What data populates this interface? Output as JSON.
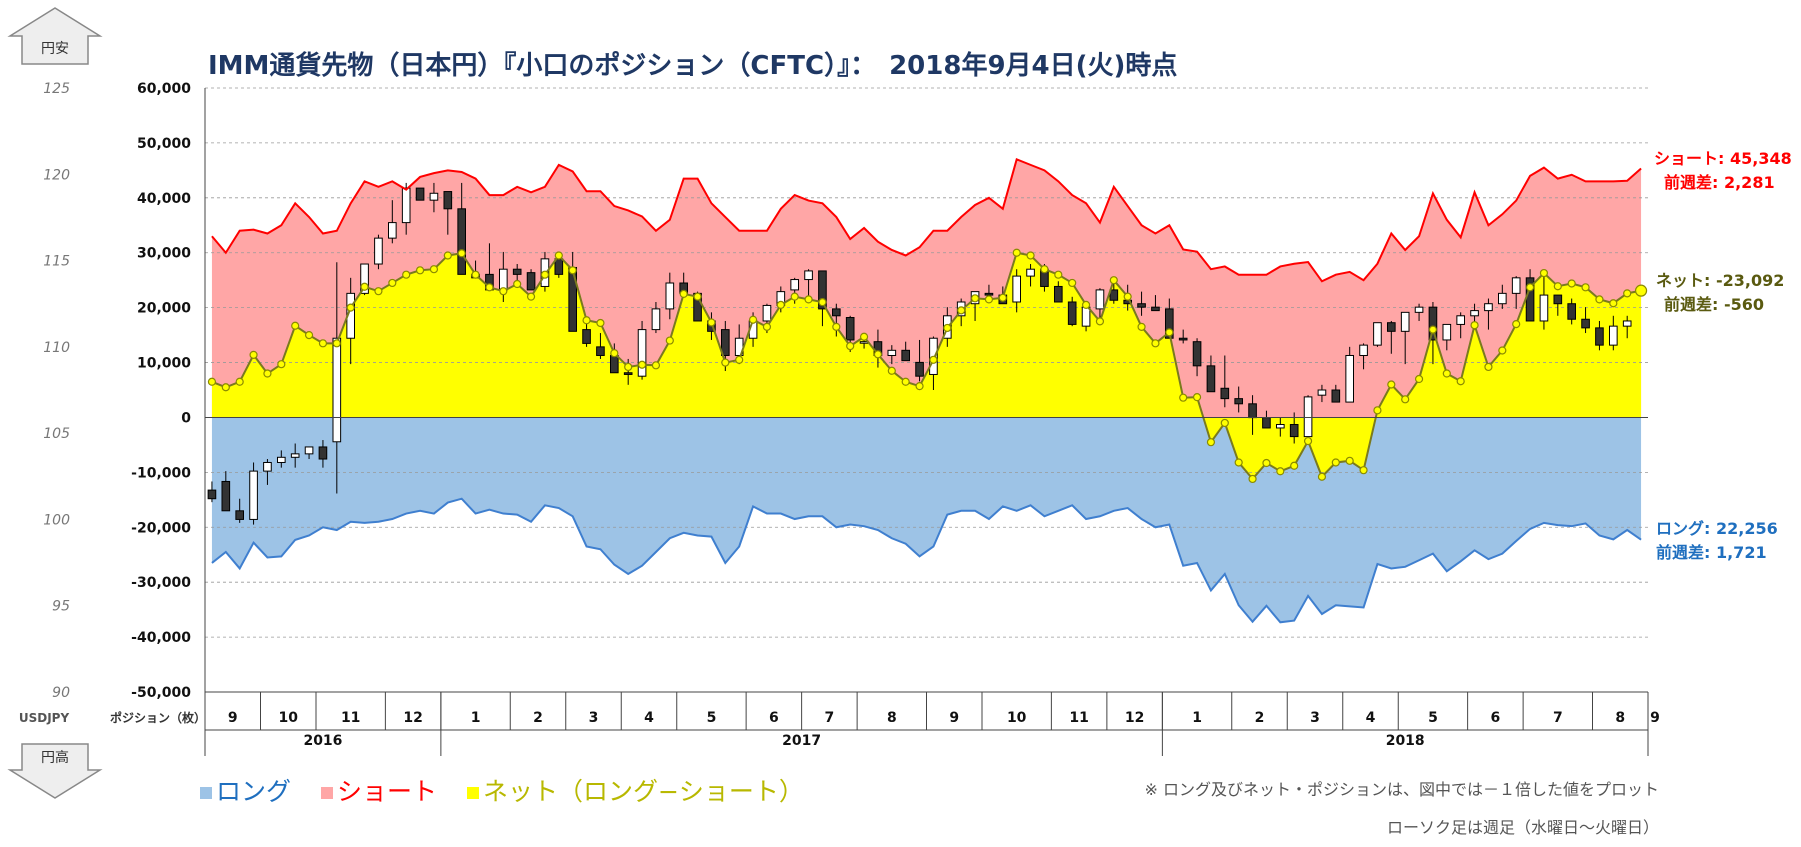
{
  "chart_data": {
    "type": "area",
    "title": "IMM通貨先物（日本円）『小口のポジション（CFTC）』：　2018年9月4日(火)時点",
    "left_axis": {
      "label": "ポジション（枚）",
      "ticks": [
        "60,000",
        "50,000",
        "40,000",
        "30,000",
        "20,000",
        "10,000",
        "0",
        "-10,000",
        "-20,000",
        "-30,000",
        "-40,000",
        "-50,000"
      ],
      "ylim": [
        -50000,
        60000
      ]
    },
    "right_price_axis": {
      "label": "USDJPY",
      "ticks": [
        "125",
        "120",
        "115",
        "110",
        "105",
        "100",
        "95",
        "90"
      ],
      "ylim": [
        90,
        125
      ]
    },
    "top_arrow": "円安",
    "bottom_arrow": "円高",
    "months": [
      {
        "label": "9",
        "weeks": 4
      },
      {
        "label": "10",
        "weeks": 4
      },
      {
        "label": "11",
        "weeks": 5
      },
      {
        "label": "12",
        "weeks": 4
      },
      {
        "label": "1",
        "weeks": 5
      },
      {
        "label": "2",
        "weeks": 4
      },
      {
        "label": "3",
        "weeks": 4
      },
      {
        "label": "4",
        "weeks": 4
      },
      {
        "label": "5",
        "weeks": 5
      },
      {
        "label": "6",
        "weeks": 4
      },
      {
        "label": "7",
        "weeks": 4
      },
      {
        "label": "8",
        "weeks": 5
      },
      {
        "label": "9",
        "weeks": 4
      },
      {
        "label": "10",
        "weeks": 5
      },
      {
        "label": "11",
        "weeks": 4
      },
      {
        "label": "12",
        "weeks": 4
      },
      {
        "label": "1",
        "weeks": 5
      },
      {
        "label": "2",
        "weeks": 4
      },
      {
        "label": "3",
        "weeks": 4
      },
      {
        "label": "4",
        "weeks": 4
      },
      {
        "label": "5",
        "weeks": 5
      },
      {
        "label": "6",
        "weeks": 4
      },
      {
        "label": "7",
        "weeks": 5
      },
      {
        "label": "8",
        "weeks": 4
      },
      {
        "label": "9",
        "weeks": 1
      }
    ],
    "years": [
      {
        "label": "2016",
        "months": 4
      },
      {
        "label": "2017",
        "months": 12
      },
      {
        "label": "2018",
        "months": 9
      }
    ],
    "series": [
      {
        "name": "ショート",
        "color": "#ff0000",
        "fill": "#ffa6a6",
        "values": [
          33000,
          30000,
          34000,
          34200,
          33500,
          35000,
          39000,
          36500,
          33500,
          34000,
          39000,
          43000,
          42000,
          43000,
          41500,
          43800,
          44500,
          45000,
          44700,
          43500,
          40500,
          40500,
          42000,
          41000,
          42000,
          46000,
          44800,
          41200,
          41200,
          38500,
          37700,
          36600,
          34000,
          36000,
          43500,
          43500,
          39000,
          36500,
          34000,
          34000,
          34000,
          38000,
          40500,
          39500,
          39000,
          36500,
          32500,
          34500,
          32000,
          30500,
          29500,
          31000,
          34000,
          34000,
          36500,
          38700,
          40000,
          38000,
          47000,
          46000,
          45000,
          43000,
          40500,
          39000,
          35500,
          42000,
          38500,
          35000,
          33500,
          35000,
          30600,
          30200,
          27000,
          27500,
          26000,
          26000,
          26000,
          27500,
          28000,
          28300,
          24800,
          26000,
          26500,
          25000,
          28000,
          33500,
          30500,
          33000,
          40800,
          36000,
          32800,
          41000,
          35000,
          37000,
          39500,
          44000,
          45500,
          43500,
          44200,
          43000,
          43000,
          43000,
          43100,
          45348
        ]
      },
      {
        "name": "ロング",
        "color": "#3f7fcf",
        "fill": "#9dc3e6",
        "values": [
          -26500,
          -24500,
          -27500,
          -22800,
          -25500,
          -25300,
          -22300,
          -21500,
          -20000,
          -20500,
          -19000,
          -19200,
          -19000,
          -18500,
          -17500,
          -17000,
          -17500,
          -15500,
          -14800,
          -17500,
          -16800,
          -17500,
          -17700,
          -19000,
          -16000,
          -16500,
          -18000,
          -23500,
          -24000,
          -26800,
          -28500,
          -27000,
          -24500,
          -22000,
          -21000,
          -21500,
          -21700,
          -26500,
          -23500,
          -16200,
          -17500,
          -17500,
          -18500,
          -18000,
          -18000,
          -20000,
          -19500,
          -19800,
          -20500,
          -22000,
          -23000,
          -25300,
          -23500,
          -17700,
          -17000,
          -17000,
          -18500,
          -16200,
          -17000,
          -16000,
          -18000,
          -17000,
          -16000,
          -18500,
          -18000,
          -17000,
          -16500,
          -18500,
          -20000,
          -19500,
          -27000,
          -26500,
          -31500,
          -28500,
          -34200,
          -37200,
          -34300,
          -37300,
          -37000,
          -32500,
          -35800,
          -34200,
          -34400,
          -34600,
          -26700,
          -27500,
          -27200,
          -26000,
          -24800,
          -28000,
          -26200,
          -24200,
          -25800,
          -24800,
          -22500,
          -20300,
          -19200,
          -19600,
          -19800,
          -19300,
          -21500,
          -22200,
          -20500,
          -22256
        ]
      },
      {
        "name": "ネット（ロング−ショート）",
        "color": "#7a7a1e",
        "fill": "#ffff00",
        "values": [
          6500,
          5500,
          6500,
          11400,
          8000,
          9700,
          16700,
          15000,
          13500,
          13500,
          20000,
          23800,
          23000,
          24500,
          26000,
          26800,
          27000,
          29500,
          29900,
          26000,
          23700,
          23000,
          24300,
          22000,
          26000,
          29500,
          26800,
          17700,
          17200,
          11700,
          9200,
          9600,
          9500,
          14000,
          22500,
          22000,
          17300,
          10000,
          10500,
          17800,
          16500,
          20500,
          22000,
          21500,
          21000,
          16500,
          13000,
          14700,
          11500,
          8500,
          6500,
          5700,
          10500,
          16300,
          19500,
          21700,
          21500,
          21800,
          30000,
          29500,
          27000,
          26000,
          24500,
          20500,
          17500,
          25000,
          22000,
          16500,
          13500,
          15500,
          3600,
          3700,
          -4500,
          -1000,
          -8200,
          -11200,
          -8300,
          -9800,
          -8800,
          -4300,
          -10800,
          -8200,
          -7900,
          -9600,
          1300,
          6000,
          3300,
          7000,
          16000,
          8000,
          6600,
          16800,
          9200,
          12200,
          17000,
          23700,
          26300,
          23900,
          24400,
          23700,
          21500,
          20800,
          22600,
          23092
        ]
      },
      {
        "name": "USDJPY",
        "type": "candlestick",
        "color": "#000000",
        "ohlc": [
          [
            101.7,
            102.2,
            101,
            101.2
          ],
          [
            102.2,
            102.8,
            101,
            100.5
          ],
          [
            100.5,
            101.2,
            99.8,
            100
          ],
          [
            100,
            103.3,
            99.7,
            102.8
          ],
          [
            102.8,
            103.5,
            102,
            103.3
          ],
          [
            103.3,
            104,
            103,
            103.6
          ],
          [
            103.6,
            104.4,
            103,
            103.8
          ],
          [
            103.8,
            104.2,
            103.5,
            104.2
          ],
          [
            104.2,
            104.6,
            103,
            103.5
          ],
          [
            104.5,
            114.9,
            101.5,
            110.5
          ],
          [
            110.5,
            114,
            109,
            113.1
          ],
          [
            113.1,
            114.5,
            113,
            114.8
          ],
          [
            114.8,
            116.5,
            114.5,
            116.3
          ],
          [
            116.3,
            118.5,
            116,
            117.2
          ],
          [
            117.2,
            119.5,
            116.5,
            119.2
          ],
          [
            119.2,
            118.8,
            118.5,
            118.5
          ],
          [
            118.5,
            119.5,
            117.8,
            118.9
          ],
          [
            119,
            119,
            116.5,
            118
          ],
          [
            118,
            119.5,
            115,
            114.2
          ],
          [
            114.2,
            115,
            114.2,
            114
          ],
          [
            114.2,
            116,
            113.5,
            113.3
          ],
          [
            113.3,
            115.5,
            112.6,
            114.5
          ],
          [
            114.5,
            114.8,
            113.8,
            114.2
          ],
          [
            114.3,
            114.5,
            113.3,
            113.3
          ],
          [
            113.5,
            115.5,
            113.2,
            115.1
          ],
          [
            115.1,
            115,
            114,
            114.2
          ],
          [
            114.6,
            115.5,
            112,
            110.9
          ],
          [
            111,
            111.5,
            110,
            110.2
          ],
          [
            110,
            110.8,
            109.3,
            109.5
          ],
          [
            109.5,
            110.2,
            108.6,
            108.5
          ],
          [
            108.5,
            109.3,
            107.8,
            108.4
          ],
          [
            108.3,
            111.5,
            108.1,
            111
          ],
          [
            111,
            112.6,
            110.8,
            112.2
          ],
          [
            112.2,
            114.3,
            111.6,
            113.7
          ],
          [
            113.7,
            114.3,
            113,
            113.1
          ],
          [
            113.1,
            113.2,
            111.5,
            111.5
          ],
          [
            111.5,
            112,
            110.4,
            110.9
          ],
          [
            111,
            111.5,
            108.6,
            109.5
          ],
          [
            109.5,
            111.3,
            109,
            110.5
          ],
          [
            110.5,
            112,
            110,
            111.5
          ],
          [
            111.5,
            112.5,
            110.8,
            112.4
          ],
          [
            112.4,
            113.5,
            112,
            113.2
          ],
          [
            113.3,
            114,
            112.5,
            113.9
          ],
          [
            113.9,
            114.5,
            112.8,
            114.4
          ],
          [
            114.4,
            114.3,
            111.2,
            112.2
          ],
          [
            112.2,
            112.5,
            110.6,
            111.8
          ],
          [
            111.7,
            111.8,
            109.7,
            110.4
          ],
          [
            110.3,
            110.8,
            109.9,
            110.3
          ],
          [
            110.3,
            111,
            108.8,
            109.5
          ],
          [
            109.5,
            110.1,
            109,
            109.8
          ],
          [
            109.8,
            110.3,
            109.3,
            109.2
          ],
          [
            109.1,
            110.4,
            108,
            108.3
          ],
          [
            108.4,
            110.6,
            107.5,
            110.5
          ],
          [
            110.5,
            112.3,
            110,
            111.8
          ],
          [
            111.8,
            112.8,
            111.2,
            112.6
          ],
          [
            112.5,
            113,
            111.5,
            113.2
          ],
          [
            113.1,
            113.6,
            112.6,
            113
          ],
          [
            113,
            113.5,
            112.5,
            112.5
          ],
          [
            112.6,
            114.5,
            112,
            114.1
          ],
          [
            114.1,
            114.8,
            113.5,
            114.5
          ],
          [
            114.5,
            114.8,
            113.2,
            113.5
          ],
          [
            113.5,
            113.8,
            113.1,
            112.6
          ],
          [
            112.6,
            112.9,
            111.2,
            111.3
          ],
          [
            111.2,
            112,
            110.9,
            112.3
          ],
          [
            112.2,
            113.4,
            111.5,
            113.3
          ],
          [
            113.3,
            113.8,
            112.5,
            112.7
          ],
          [
            112.7,
            113.6,
            112.1,
            112.5
          ],
          [
            112.5,
            113.2,
            111.8,
            112.3
          ],
          [
            112.3,
            113,
            112.1,
            112.1
          ],
          [
            112.2,
            112.8,
            110.6,
            110.5
          ],
          [
            110.5,
            111,
            110.2,
            110.4
          ],
          [
            110.3,
            110.5,
            108.3,
            108.9
          ],
          [
            108.9,
            109.5,
            107.7,
            107.4
          ],
          [
            107.6,
            109.5,
            106.5,
            107
          ],
          [
            107,
            107.7,
            106.2,
            106.7
          ],
          [
            106.7,
            107.2,
            104.9,
            105.9
          ],
          [
            105.9,
            106.3,
            105.4,
            105.3
          ],
          [
            105.3,
            105.9,
            104.8,
            105.5
          ],
          [
            105.5,
            106.2,
            104.4,
            104.8
          ],
          [
            104.8,
            107.2,
            104.8,
            107.1
          ],
          [
            107.2,
            107.8,
            106.8,
            107.5
          ],
          [
            107.5,
            107.8,
            107.2,
            106.8
          ],
          [
            106.8,
            110,
            106.8,
            109.5
          ],
          [
            109.5,
            110.2,
            108.7,
            110.1
          ],
          [
            110.1,
            111.2,
            110,
            111.4
          ],
          [
            111.4,
            111.5,
            109.6,
            110.9
          ],
          [
            110.9,
            112,
            109,
            112
          ],
          [
            112,
            112.5,
            111.5,
            112.3
          ],
          [
            112.3,
            112.6,
            109,
            110.4
          ],
          [
            110.4,
            111,
            109.8,
            111.3
          ],
          [
            111.3,
            112,
            110.5,
            111.8
          ],
          [
            111.8,
            112.5,
            111,
            112.1
          ],
          [
            112.1,
            112.8,
            111,
            112.5
          ],
          [
            112.5,
            113.6,
            112.2,
            113.1
          ],
          [
            113.1,
            114.1,
            112.2,
            114
          ],
          [
            114,
            114.5,
            111.8,
            111.5
          ],
          [
            111.5,
            114.2,
            111,
            113
          ],
          [
            113,
            113,
            111.8,
            112.5
          ],
          [
            112.5,
            112.8,
            111.3,
            111.6
          ],
          [
            111.6,
            112.3,
            110.8,
            111.1
          ],
          [
            111.1,
            111.5,
            109.8,
            110.1
          ],
          [
            110.1,
            111.8,
            109.8,
            111.2
          ],
          [
            111.2,
            111.8,
            110.5,
            111.5
          ]
        ]
      }
    ],
    "annotations": {
      "short": {
        "line1": "ショート: 45,348",
        "line2": "前週差: 2,281",
        "color": "#ff0000"
      },
      "net": {
        "line1": "ネット: -23,092",
        "line2": "前週差: -560",
        "color": "#5a5a10"
      },
      "long": {
        "line1": "ロング: 22,256",
        "line2": "前週差: 1,721",
        "color": "#1f6fbf"
      }
    }
  },
  "legend": [
    {
      "label": "ロング",
      "color": "#9dc3e6",
      "text_color": "#1f6fbf"
    },
    {
      "label": "ショート",
      "color": "#ffa6a6",
      "text_color": "#ff0000"
    },
    {
      "label": "ネット（ロング−ショート）",
      "color": "#ffff00",
      "text_color": "#b8b800"
    }
  ],
  "notes": {
    "note1": "※ ロング及びネット・ポジションは、図中では－１倍した値をプロット",
    "note2": "ローソク足は週足（水曜日～火曜日）"
  }
}
